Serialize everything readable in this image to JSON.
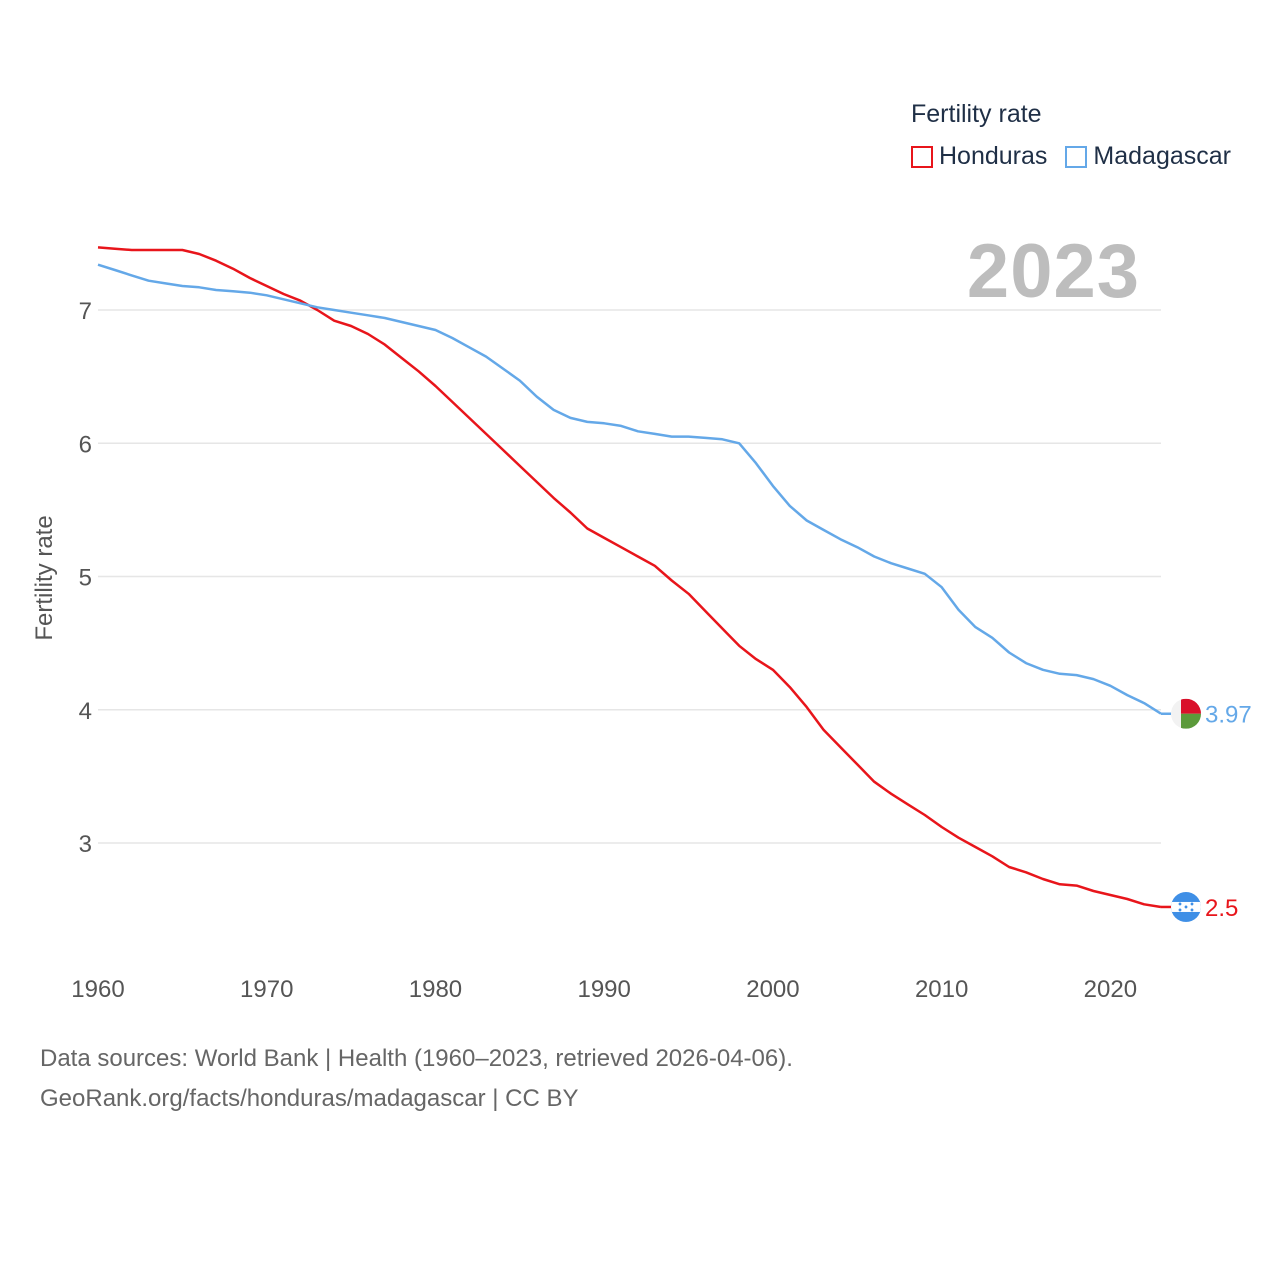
{
  "legend": {
    "title": "Fertility rate",
    "items": [
      {
        "name": "Honduras",
        "color": "#e8151b"
      },
      {
        "name": "Madagascar",
        "color": "#64a8e8"
      }
    ]
  },
  "current_year": "2023",
  "source": {
    "line1": "Data sources: World Bank | Health (1960–2023, retrieved 2026-04-06).",
    "line2": "GeoRank.org/facts/honduras/madagascar | CC BY"
  },
  "chart_data": {
    "type": "line",
    "title": "",
    "xlabel": "",
    "ylabel": "Fertility rate",
    "xlim": [
      1960,
      2023
    ],
    "ylim": [
      2.2,
      7.5
    ],
    "x_ticks": [
      1960,
      1970,
      1980,
      1990,
      2000,
      2010,
      2020
    ],
    "y_ticks": [
      3,
      4,
      5,
      6,
      7
    ],
    "x": [
      1960,
      1961,
      1962,
      1963,
      1964,
      1965,
      1966,
      1967,
      1968,
      1969,
      1970,
      1971,
      1972,
      1973,
      1974,
      1975,
      1976,
      1977,
      1978,
      1979,
      1980,
      1981,
      1982,
      1983,
      1984,
      1985,
      1986,
      1987,
      1988,
      1989,
      1990,
      1991,
      1992,
      1993,
      1994,
      1995,
      1996,
      1997,
      1998,
      1999,
      2000,
      2001,
      2002,
      2003,
      2004,
      2005,
      2006,
      2007,
      2008,
      2009,
      2010,
      2011,
      2012,
      2013,
      2014,
      2015,
      2016,
      2017,
      2018,
      2019,
      2020,
      2021,
      2022,
      2023
    ],
    "series": [
      {
        "name": "Honduras",
        "color": "#e8151b",
        "end_label": "2.5",
        "values": [
          7.47,
          7.46,
          7.45,
          7.45,
          7.45,
          7.45,
          7.42,
          7.37,
          7.31,
          7.24,
          7.18,
          7.12,
          7.07,
          7.0,
          6.92,
          6.88,
          6.82,
          6.74,
          6.64,
          6.54,
          6.43,
          6.31,
          6.19,
          6.07,
          5.95,
          5.83,
          5.71,
          5.59,
          5.48,
          5.36,
          5.29,
          5.22,
          5.15,
          5.08,
          4.97,
          4.87,
          4.74,
          4.61,
          4.48,
          4.38,
          4.3,
          4.17,
          4.02,
          3.85,
          3.72,
          3.59,
          3.46,
          3.37,
          3.29,
          3.21,
          3.12,
          3.04,
          2.97,
          2.9,
          2.82,
          2.78,
          2.73,
          2.69,
          2.68,
          2.64,
          2.61,
          2.58,
          2.54,
          2.52
        ]
      },
      {
        "name": "Madagascar",
        "color": "#64a8e8",
        "end_label": "3.97",
        "values": [
          7.34,
          7.3,
          7.26,
          7.22,
          7.2,
          7.18,
          7.17,
          7.15,
          7.14,
          7.13,
          7.11,
          7.08,
          7.05,
          7.02,
          7.0,
          6.98,
          6.96,
          6.94,
          6.91,
          6.88,
          6.85,
          6.79,
          6.72,
          6.65,
          6.56,
          6.47,
          6.35,
          6.25,
          6.19,
          6.16,
          6.15,
          6.13,
          6.09,
          6.07,
          6.05,
          6.05,
          6.04,
          6.03,
          6.0,
          5.85,
          5.68,
          5.53,
          5.42,
          5.35,
          5.28,
          5.22,
          5.15,
          5.1,
          5.06,
          5.02,
          4.92,
          4.75,
          4.62,
          4.54,
          4.43,
          4.35,
          4.3,
          4.27,
          4.26,
          4.23,
          4.18,
          4.11,
          4.05,
          3.97
        ]
      }
    ]
  }
}
